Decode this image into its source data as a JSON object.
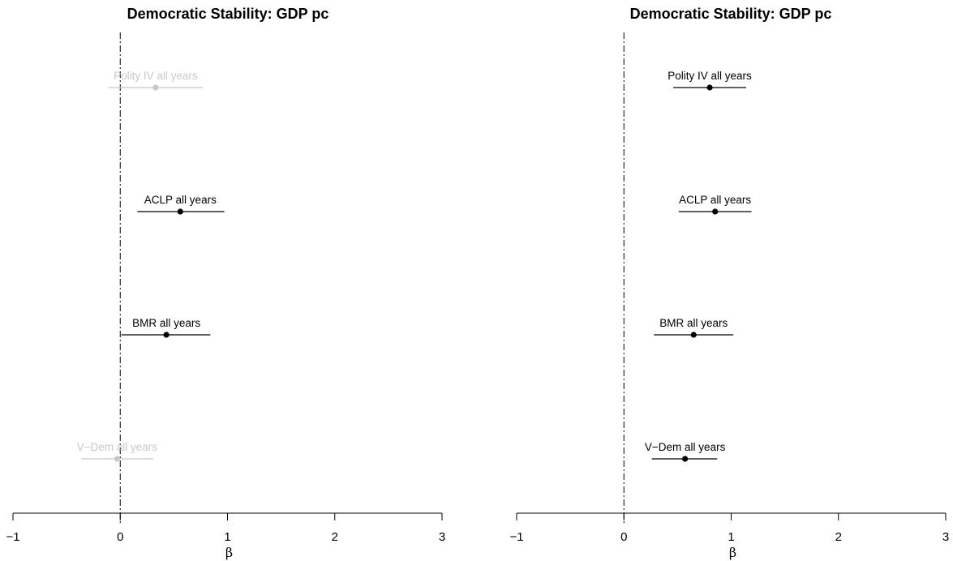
{
  "chart_data": [
    {
      "type": "scatter",
      "title": "Democratic Stability: GDP pc",
      "xlabel": "β",
      "ylabel": "",
      "xlim": [
        -1,
        3
      ],
      "x_ticks": [
        "−1",
        "0",
        "1",
        "2",
        "3"
      ],
      "reference_line": 0,
      "grid": false,
      "estimates": [
        {
          "label": "Polity IV all years",
          "estimate": 0.33,
          "ci_low": -0.11,
          "ci_high": 0.77,
          "significant": false,
          "color": "#c8c8c8"
        },
        {
          "label": "ACLP all years",
          "estimate": 0.56,
          "ci_low": 0.16,
          "ci_high": 0.97,
          "significant": true,
          "color": "#000000"
        },
        {
          "label": "BMR all years",
          "estimate": 0.43,
          "ci_low": 0.01,
          "ci_high": 0.84,
          "significant": true,
          "color": "#000000"
        },
        {
          "label": "V−Dem all years",
          "estimate": -0.03,
          "ci_low": -0.36,
          "ci_high": 0.31,
          "significant": false,
          "color": "#c8c8c8"
        }
      ]
    },
    {
      "type": "scatter",
      "title": "Democratic Stability: GDP pc",
      "xlabel": "β",
      "ylabel": "",
      "xlim": [
        -1,
        3
      ],
      "x_ticks": [
        "−1",
        "0",
        "1",
        "2",
        "3"
      ],
      "reference_line": 0,
      "grid": false,
      "estimates": [
        {
          "label": "Polity IV all years",
          "estimate": 0.8,
          "ci_low": 0.46,
          "ci_high": 1.14,
          "significant": true,
          "color": "#000000"
        },
        {
          "label": "ACLP all years",
          "estimate": 0.85,
          "ci_low": 0.51,
          "ci_high": 1.19,
          "significant": true,
          "color": "#000000"
        },
        {
          "label": "BMR all years",
          "estimate": 0.65,
          "ci_low": 0.28,
          "ci_high": 1.02,
          "significant": true,
          "color": "#000000"
        },
        {
          "label": "V−Dem all years",
          "estimate": 0.57,
          "ci_low": 0.26,
          "ci_high": 0.87,
          "significant": true,
          "color": "#000000"
        }
      ]
    }
  ]
}
